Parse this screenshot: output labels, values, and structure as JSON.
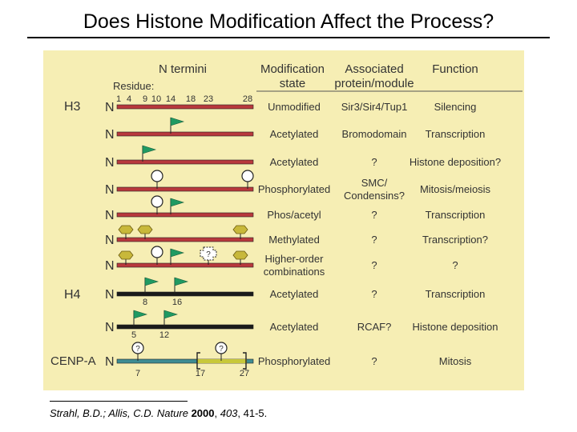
{
  "slide": {
    "title": "Does Histone Modification Affect the Process?",
    "citation": {
      "authors": "Strahl, B.D.; Allis, C.D.",
      "journal": "Nature",
      "year": "2000",
      "volume": "403",
      "pages": ", 41-5."
    }
  },
  "figure": {
    "colors": {
      "panel_bg": "#f6eeb4",
      "h3_bar": "#b8383c",
      "h4_bar": "#1a1a1a",
      "cenpa_bar": "#3e8c93",
      "cenpa_highlight": "#c8c83a",
      "acetyl_flag": "#1f9a62",
      "methyl_hexagon": "#c8b83a"
    },
    "headers": {
      "termini": "N termini",
      "modification": [
        "Modification",
        "state"
      ],
      "associated": [
        "Associated",
        "protein/module"
      ],
      "function": "Function"
    },
    "residue_label": "Residue:",
    "h3_residues": [
      "1",
      "4",
      "9",
      "10",
      "14",
      "18",
      "23",
      "28"
    ],
    "histone_labels": {
      "h3": "H3",
      "h4": "H4",
      "cenpa": "CENP-A"
    },
    "n_terminus_label": "N",
    "rows": [
      {
        "mod": [
          "Unmodified"
        ],
        "assoc": [
          "Sir3/Sir4/Tup1"
        ],
        "func": [
          "Silencing"
        ],
        "icon_names": []
      },
      {
        "mod": [
          "Acetylated"
        ],
        "assoc": [
          "Bromodomain"
        ],
        "func": [
          "Transcription"
        ],
        "icon_names": [
          "acetyl-flag-icon"
        ]
      },
      {
        "mod": [
          "Acetylated"
        ],
        "assoc": [
          "?"
        ],
        "func": [
          "Histone deposition?"
        ],
        "icon_names": [
          "acetyl-flag-icon"
        ]
      },
      {
        "mod": [
          "Phosphorylated"
        ],
        "assoc": [
          "SMC/",
          "Condensins?"
        ],
        "func": [
          "Mitosis/meiosis"
        ],
        "icon_names": [
          "phospho-circle-icon"
        ]
      },
      {
        "mod": [
          "Phos/acetyl"
        ],
        "assoc": [
          "?"
        ],
        "func": [
          "Transcription"
        ],
        "icon_names": [
          "phospho-circle-icon",
          "acetyl-flag-icon"
        ]
      },
      {
        "mod": [
          "Methylated"
        ],
        "assoc": [
          "?"
        ],
        "func": [
          "Transcription?"
        ],
        "icon_names": [
          "methyl-hexagon-icon"
        ]
      },
      {
        "mod": [
          "Higher-order",
          "combinations"
        ],
        "assoc": [
          "?"
        ],
        "func": [
          "?"
        ],
        "icon_names": [
          "methyl-hexagon-icon",
          "phospho-circle-icon",
          "acetyl-flag-icon",
          "unknown-modification-icon"
        ]
      },
      {
        "mod": [
          "Acetylated"
        ],
        "assoc": [
          "?"
        ],
        "func": [
          "Transcription"
        ],
        "icon_names": [
          "acetyl-flag-icon"
        ]
      },
      {
        "mod": [
          "Acetylated"
        ],
        "assoc": [
          "RCAF?"
        ],
        "func": [
          "Histone deposition"
        ],
        "icon_names": [
          "acetyl-flag-icon"
        ]
      },
      {
        "mod": [
          "Phosphorylated"
        ],
        "assoc": [
          "?"
        ],
        "func": [
          "Mitosis"
        ],
        "icon_names": [
          "unknown-phospho-circle-icon"
        ]
      }
    ],
    "h4_row1_residues": [
      "8",
      "16"
    ],
    "h4_row2_residues": [
      "5",
      "12"
    ],
    "cenpa_residues": [
      "7",
      "17",
      "27"
    ],
    "unknown_mark": "?"
  }
}
